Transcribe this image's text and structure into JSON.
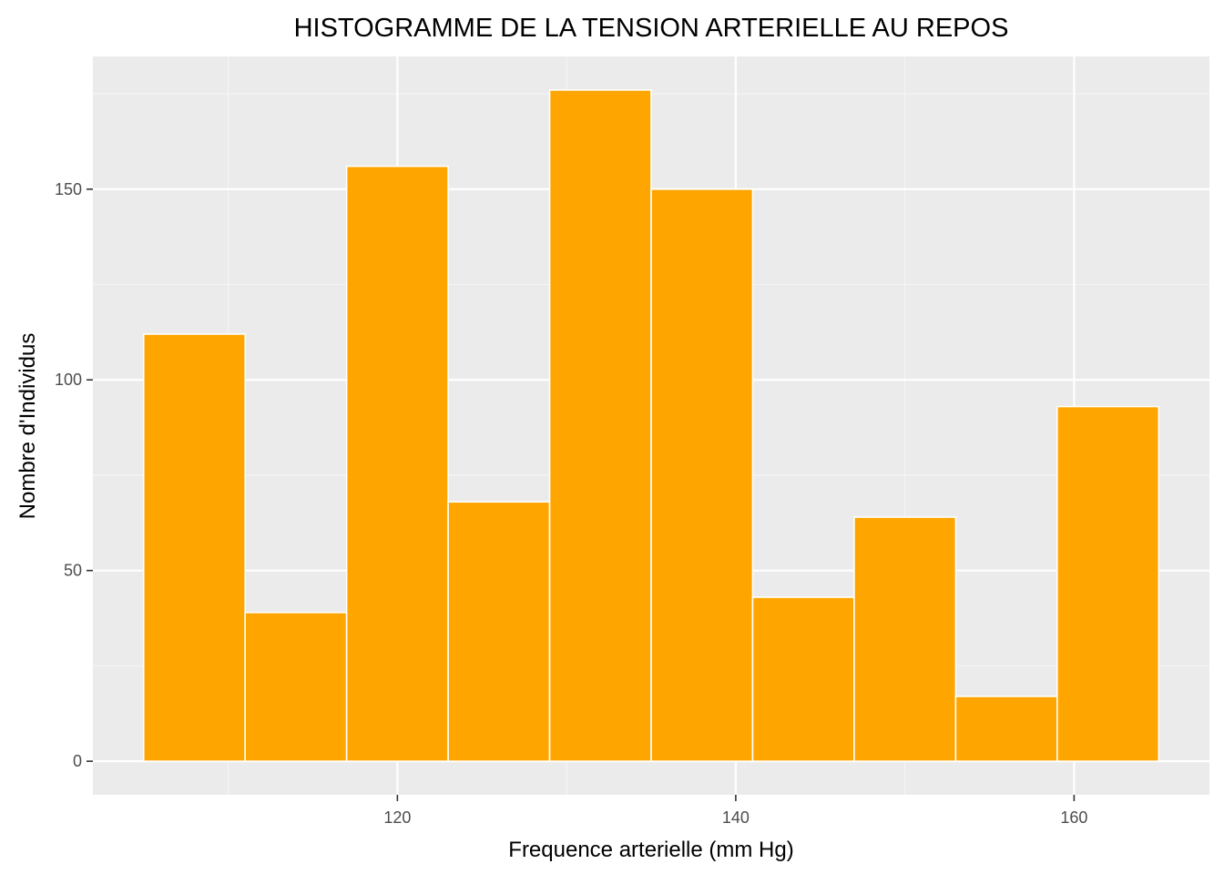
{
  "chart_data": {
    "type": "bar",
    "title": "HISTOGRAMME DE LA TENSION ARTERIELLE AU REPOS",
    "xlabel": "Frequence arterielle (mm Hg)",
    "ylabel": "Nombre d'Individus",
    "bins": [
      {
        "x_start": 105,
        "x_end": 111,
        "count": 112
      },
      {
        "x_start": 111,
        "x_end": 117,
        "count": 39
      },
      {
        "x_start": 117,
        "x_end": 123,
        "count": 156
      },
      {
        "x_start": 123,
        "x_end": 129,
        "count": 68
      },
      {
        "x_start": 129,
        "x_end": 135,
        "count": 176
      },
      {
        "x_start": 135,
        "x_end": 141,
        "count": 150
      },
      {
        "x_start": 141,
        "x_end": 147,
        "count": 43
      },
      {
        "x_start": 147,
        "x_end": 153,
        "count": 64
      },
      {
        "x_start": 153,
        "x_end": 159,
        "count": 17
      },
      {
        "x_start": 159,
        "x_end": 165,
        "count": 93
      }
    ],
    "xlim": [
      102,
      168
    ],
    "ylim": [
      -8.8,
      184.8
    ],
    "x_ticks": [
      120,
      140,
      160
    ],
    "y_ticks": [
      0,
      50,
      100,
      150
    ],
    "x_tick_labels": [
      "120",
      "140",
      "160"
    ],
    "y_tick_labels": [
      "0",
      "50",
      "100",
      "150"
    ],
    "grid": true,
    "colors": {
      "bar_fill": "#FFA500",
      "bar_outline": "#FFFFFF",
      "panel_background": "#EBEBEB",
      "grid_major": "#FFFFFF",
      "grid_minor": "#F5F5F5",
      "tick_text": "#4D4D4D"
    }
  }
}
